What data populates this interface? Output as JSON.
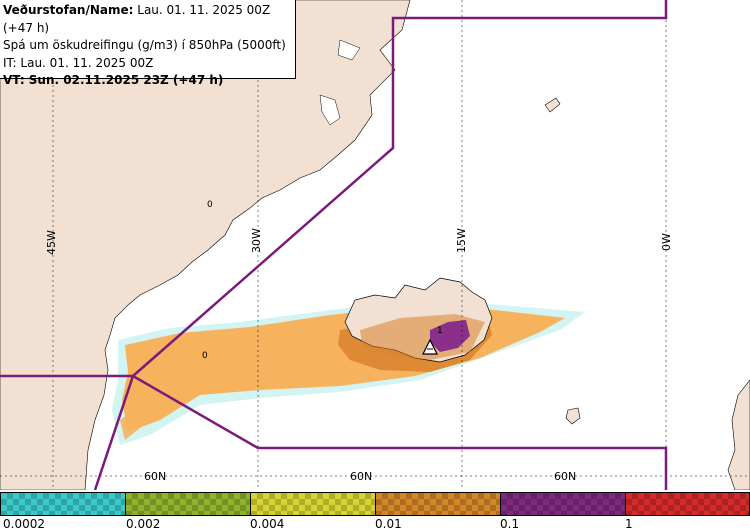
{
  "header": {
    "name_label": "Veðurstofan/Name:",
    "name_value": " Lau. 01. 11. 2025 00Z (+47 h)",
    "forecast_line": "Spá um öskudreifingu (g/m3) í 850hPa (5000ft)",
    "it_line": "IT: Lau. 01. 11. 2025 00Z",
    "vt_line": "VT: Sun. 02.11.2025 23Z (+47 h)"
  },
  "map": {
    "longitude_labels": [
      "45W",
      "30W",
      "15W",
      "0W"
    ],
    "latitude_labels": [
      "60N",
      "60N",
      "60N"
    ],
    "contour_labels": [
      "0",
      "0",
      "1"
    ],
    "volcano_symbol": "volcano-triangle-icon",
    "colors": {
      "land": "#f2e1d3",
      "sea": "#ffffff",
      "boundary": "#7a1a7a",
      "ash_light": "#f6b25c",
      "ash_dark": "#d9832e",
      "ash_high": "#8a2f8a",
      "ash_edge": "#8fe6e6"
    }
  },
  "legend": {
    "ticks": [
      "0.0002",
      "0.002",
      "0.004",
      "0.01",
      "0.1",
      "1"
    ],
    "colors": [
      "#3bc9c9",
      "#8fb12c",
      "#d7d332",
      "#d4862a",
      "#7e2a7e",
      "#d42a2a"
    ]
  }
}
